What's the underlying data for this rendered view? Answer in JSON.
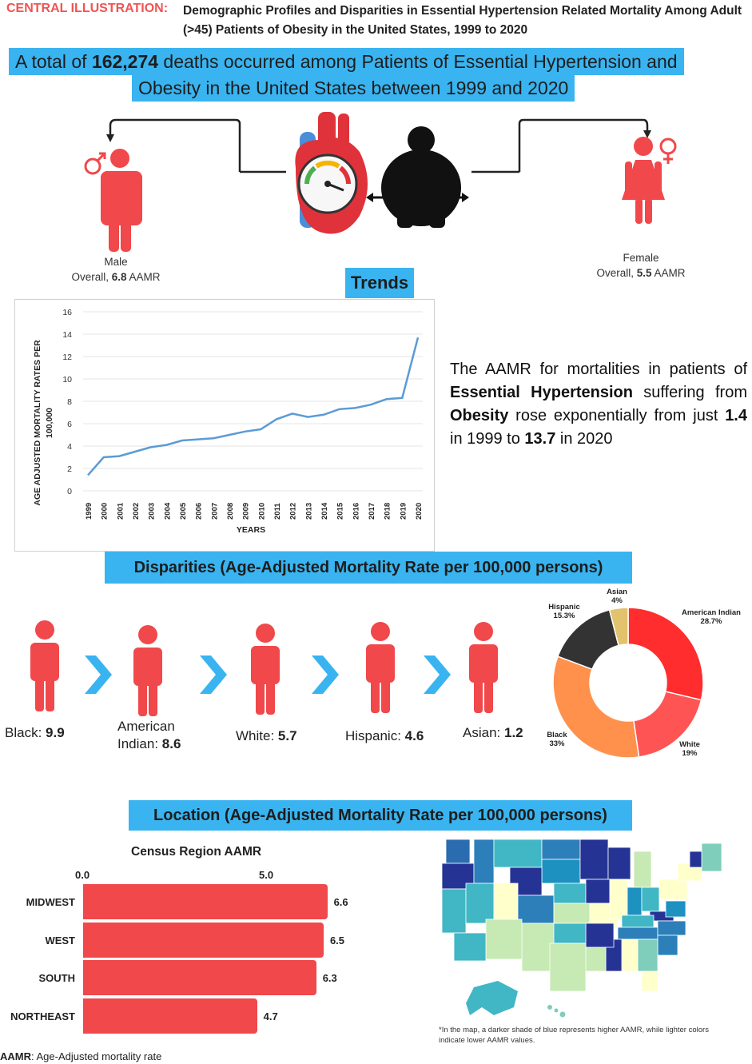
{
  "header": {
    "label": "CENTRAL ILLUSTRATION:",
    "title": "Demographic Profiles and Disparities in Essential Hypertension Related Mortality Among Adult (>45) Patients of Obesity in the United States, 1999 to 2020"
  },
  "summary": {
    "line1_prefix": "A total of ",
    "line1_number": "162,274",
    "line1_suffix": " deaths occurred among Patients of Essential Hypertension and",
    "line2": "Obesity in the United States between 1999 and 2020"
  },
  "sex": {
    "male_label": "Male",
    "male_overall_prefix": "Overall, ",
    "male_value": "6.8",
    "male_unit": " AAMR",
    "female_label": "Female",
    "female_overall_prefix": "Overall, ",
    "female_value": "5.5",
    "female_unit": " AAMR"
  },
  "trends": {
    "heading": "Trends",
    "text_1": "The AAMR for mortalities in patients of ",
    "text_bold_1": "Essential Hypertension",
    "text_2": " suffering from ",
    "text_bold_2": "Obesity",
    "text_3": " rose exponentially from just ",
    "start_value": "1.4",
    "text_4": " in 1999 to ",
    "end_value": "13.7",
    "text_5": " in 2020"
  },
  "chart_data": [
    {
      "type": "line",
      "title": "",
      "xlabel": "YEARS",
      "ylabel": "AGE ADJUSTED MORTALITY RATES PER 100,000",
      "ylim": [
        0,
        16
      ],
      "yticks": [
        0,
        2,
        4,
        6,
        8,
        10,
        12,
        14,
        16
      ],
      "x": [
        "1999",
        "2000",
        "2001",
        "2002",
        "2003",
        "2004",
        "2005",
        "2006",
        "2007",
        "2008",
        "2009",
        "2010",
        "2011",
        "2012",
        "2013",
        "2014",
        "2015",
        "2016",
        "2017",
        "2018",
        "2019",
        "2020"
      ],
      "series": [
        {
          "name": "AAMR",
          "color": "#5b9bd5",
          "values": [
            1.4,
            3.0,
            3.1,
            3.5,
            3.9,
            4.1,
            4.5,
            4.6,
            4.7,
            5.0,
            5.3,
            5.5,
            6.4,
            6.9,
            6.6,
            6.8,
            7.3,
            7.4,
            7.7,
            8.2,
            8.3,
            13.7
          ]
        }
      ]
    },
    {
      "type": "pie",
      "title": "",
      "labels": [
        "American Indian",
        "White",
        "Black",
        "Hispanic",
        "Asian"
      ],
      "values": [
        28.7,
        19,
        33,
        15.3,
        4
      ],
      "value_labels": [
        "28.7%",
        "19%",
        "33%",
        "15.3%",
        "4%"
      ],
      "colors": [
        "#ff2d2d",
        "#ff5454",
        "#ff914d",
        "#333333",
        "#e2c26c"
      ]
    },
    {
      "type": "bar",
      "title": "Census Region AAMR",
      "orientation": "horizontal",
      "categories": [
        "MIDWEST",
        "WEST",
        "SOUTH",
        "NORTHEAST"
      ],
      "values": [
        6.6,
        6.5,
        6.3,
        4.7
      ],
      "xticks": [
        "0.0",
        "5.0"
      ],
      "xlim": [
        0,
        7
      ],
      "color": "#f0484b"
    }
  ],
  "disparities": {
    "heading": "Disparities (Age-Adjusted Mortality Rate per 100,000 persons)",
    "groups": [
      {
        "label": "Black: ",
        "value": "9.9"
      },
      {
        "label_line1": "American",
        "label_line2": "Indian: ",
        "value": "8.6"
      },
      {
        "label": "White: ",
        "value": "5.7"
      },
      {
        "label": "Hispanic: ",
        "value": "4.6"
      },
      {
        "label": "Asian: ",
        "value": "1.2"
      }
    ]
  },
  "location": {
    "heading": "Location (Age-Adjusted Mortality Rate per 100,000 persons)",
    "map_note": "*In the map, a darker shade of blue represents higher AAMR, while lighter colors indicate lower AAMR values."
  },
  "footnote": {
    "term": "AAMR",
    "definition": ": Age-Adjusted mortality rate"
  },
  "colors": {
    "accent_band": "#39b4f0",
    "person_red": "#f0484b",
    "chevron_blue": "#39b4f0",
    "header_red": "#f05454"
  }
}
